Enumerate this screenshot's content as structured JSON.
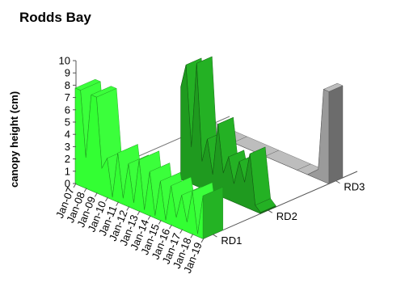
{
  "chart_data": {
    "type": "area",
    "subtype": "3d-area",
    "title": "Rodds Bay",
    "ylabel": "canopy height (cm)",
    "xlabel": "",
    "ylim": [
      0,
      10
    ],
    "y_ticks": [
      "0",
      "1",
      "2",
      "3",
      "4",
      "5",
      "6",
      "7",
      "8",
      "9",
      "10"
    ],
    "x_tick_labels": [
      "Jan-07",
      "Jan-08",
      "Jan-09",
      "Jan-10",
      "Jan-11",
      "Jan-12",
      "Jan-13",
      "Jan-14",
      "Jan-15",
      "Jan-16",
      "Jan-17",
      "Jan-18",
      "Jan-19"
    ],
    "x_range": [
      2007.0,
      2019.0
    ],
    "depth_labels": [
      "RD1",
      "RD2",
      "RD3"
    ],
    "colors": {
      "RD1": "#33ff33",
      "RD2": "#1f9a1f",
      "RD3": "#9a9a9a",
      "RD3_top": "#bdbdbd"
    },
    "series": [
      {
        "name": "RD1",
        "x": [
          2007.0,
          2007.5,
          2008.0,
          2008.5,
          2009.0,
          2009.5,
          2010.0,
          2010.5,
          2011.0,
          2011.5,
          2012.0,
          2012.5,
          2013.0,
          2013.5,
          2014.0,
          2014.5,
          2015.0,
          2015.5,
          2016.0,
          2016.5,
          2017.0,
          2017.5,
          2018.0,
          2018.5,
          2019.0
        ],
        "values": [
          7.8,
          7.8,
          2.5,
          7.8,
          7.8,
          2.2,
          3.2,
          0.2,
          4.0,
          0.5,
          3.5,
          0.5,
          4.2,
          0.3,
          3.6,
          0.2,
          3.2,
          0.2,
          3.2,
          0.8,
          2.8,
          0.8,
          3.5,
          0.2,
          3.5
        ]
      },
      {
        "name": "RD2",
        "x": [
          2011.5,
          2012.0,
          2012.5,
          2013.0,
          2013.5,
          2014.0,
          2014.5,
          2015.0,
          2015.5,
          2016.0,
          2016.5,
          2017.0,
          2017.5,
          2018.0,
          2018.5,
          2019.0
        ],
        "values": [
          7.5,
          9.5,
          3.0,
          10.0,
          2.2,
          4.2,
          1.5,
          5.8,
          2.0,
          3.5,
          1.5,
          3.5,
          2.0,
          4.5,
          0.5,
          0.1
        ]
      },
      {
        "name": "RD3",
        "x": [
          2007.0,
          2010.0,
          2013.0,
          2016.0,
          2017.0,
          2018.0,
          2018.5,
          2019.0
        ],
        "values": [
          0.0,
          0.0,
          0.0,
          0.0,
          0.0,
          0.8,
          7.5,
          7.5
        ]
      }
    ]
  }
}
